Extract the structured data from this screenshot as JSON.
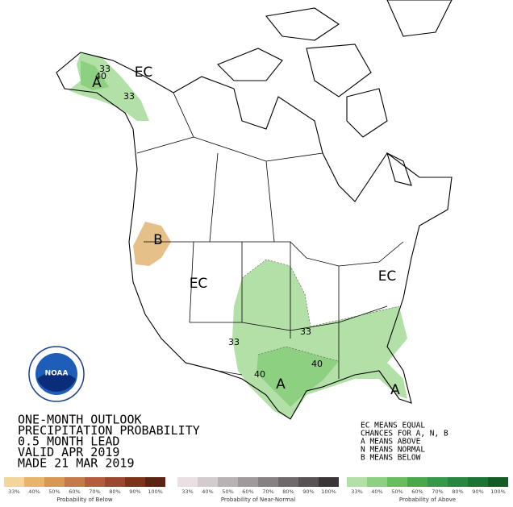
{
  "map_labels": {
    "ec_north": "EC",
    "ec_west": "EC",
    "ec_east": "EC",
    "a_alaska": "A",
    "a_texas": "A",
    "a_florida": "A",
    "b_oregon": "B",
    "c33_alaska_a": "33",
    "c33_alaska_b": "33",
    "c40_alaska": "40",
    "c33_plains": "33",
    "c33_east": "33",
    "c40_texas": "40",
    "c40_south": "40"
  },
  "logo_text": "NOAA",
  "title_lines": [
    "ONE-MONTH OUTLOOK",
    "PRECIPITATION PROBABILITY",
    "0.5 MONTH LEAD",
    "VALID APR 2019",
    "MADE 21 MAR 2019"
  ],
  "key_lines": [
    "EC MEANS EQUAL",
    "CHANCES FOR A, N, B",
    "A MEANS ABOVE",
    "N MEANS NORMAL",
    "B MEANS BELOW"
  ],
  "legends": [
    {
      "title": "Probability of Below",
      "ticks": [
        "33%",
        "40%",
        "50%",
        "60%",
        "70%",
        "80%",
        "90%",
        "100%"
      ],
      "colors": [
        "#f3d59b",
        "#e6b56c",
        "#d69853",
        "#c57a4c",
        "#b35d3e",
        "#9a4830",
        "#7c3418",
        "#5a2312"
      ]
    },
    {
      "title": "Probability of Near-Normal",
      "ticks": [
        "33%",
        "40%",
        "50%",
        "60%",
        "70%",
        "80%",
        "90%",
        "100%"
      ],
      "colors": [
        "#e8e0e3",
        "#d3cccf",
        "#b9b2b5",
        "#a09a9c",
        "#878183",
        "#6f696b",
        "#575253",
        "#3a3637"
      ]
    },
    {
      "title": "Probability of Above",
      "ticks": [
        "33%",
        "40%",
        "50%",
        "60%",
        "70%",
        "80%",
        "90%",
        "100%"
      ],
      "colors": [
        "#b3e0a6",
        "#8dd081",
        "#68bd5f",
        "#4aa74c",
        "#35984a",
        "#288640",
        "#1b7334",
        "#135c25"
      ]
    }
  ]
}
